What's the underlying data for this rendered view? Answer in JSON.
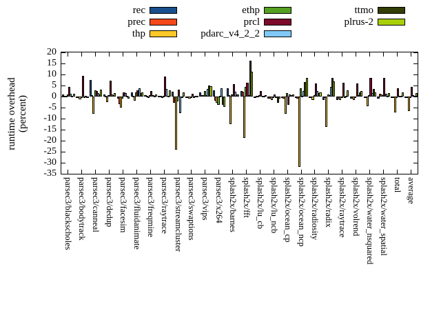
{
  "chart_data": {
    "type": "bar",
    "title": "",
    "ylabel": "runtime overhead (percent)",
    "ylabel_lines": [
      "runtime overhead",
      "(percent)"
    ],
    "ylim": [
      -35,
      20
    ],
    "ytick_step": 5,
    "ytick_labels": [
      "20",
      "15",
      "10",
      "5",
      "0",
      "-5",
      "-10",
      "-15",
      "-20",
      "-25",
      "-30",
      "-35"
    ],
    "grid": false,
    "legend_position": "top",
    "legend_columns": [
      [
        "rec",
        "prec",
        "thp"
      ],
      [
        "ethp",
        "prcl",
        "pdarc_v4_2_2"
      ],
      [
        "ttmo",
        "plrus-2"
      ]
    ],
    "categories": [
      "parsec3/blackscholes",
      "parsec3/bodytrack",
      "parsec3/canneal",
      "parsec3/dedup",
      "parsec3/facesim",
      "parsec3/fluidanimate",
      "parsec3/freqmine",
      "parsec3/raytrace",
      "parsec3/streamcluster",
      "parsec3/swaptions",
      "parsec3/vips",
      "parsec3/x264",
      "splash2x/barnes",
      "splash2x/fft",
      "splash2x/lu_cb",
      "splash2x/lu_ncb",
      "splash2x/ocean_cp",
      "splash2x/ocean_ncp",
      "splash2x/radiosity",
      "splash2x/radix",
      "splash2x/raytrace",
      "splash2x/volrend",
      "splash2x/water_nsquared",
      "splash2x/water_spatial",
      "total",
      "average"
    ],
    "series": [
      {
        "name": "rec",
        "color": "#194f8c",
        "values": [
          0.8,
          -0.3,
          7.5,
          1.0,
          -1.0,
          2.0,
          0.5,
          0.3,
          2.2,
          -0.3,
          2.0,
          2.8,
          3.7,
          2.4,
          -0.3,
          -1.0,
          -0.5,
          -0.5,
          -0.5,
          -1.5,
          -1.5,
          -0.8,
          -0.5,
          -1.0,
          -0.3,
          -0.3
        ]
      },
      {
        "name": "prec",
        "color": "#f4481a",
        "values": [
          0.3,
          -0.5,
          0.5,
          0.3,
          -3.5,
          0.3,
          0.2,
          0.2,
          -2.8,
          -0.5,
          0.5,
          -1.9,
          0.5,
          2.2,
          0.2,
          -0.8,
          -0.8,
          -1.0,
          -0.3,
          -0.5,
          -0.8,
          -0.8,
          -0.6,
          1.1,
          -0.5,
          -0.4
        ]
      },
      {
        "name": "thp",
        "color": "#fcc829",
        "values": [
          0.3,
          -1.2,
          -7.9,
          -2.6,
          -5.0,
          -1.8,
          -0.5,
          -0.4,
          -24.2,
          -0.8,
          0.5,
          -2.8,
          -12.5,
          -18.7,
          0.3,
          -1.5,
          -7.9,
          -32.0,
          -1.5,
          -13.6,
          -1.5,
          -1.5,
          -4.3,
          0.9,
          -7.1,
          -6.5
        ]
      },
      {
        "name": "ethp",
        "color": "#54a021",
        "values": [
          0.8,
          -0.5,
          2.9,
          0.5,
          -1.0,
          2.0,
          0.5,
          0.4,
          -2.3,
          -0.3,
          2.5,
          -3.7,
          1.0,
          4.5,
          0.5,
          -0.5,
          1.5,
          3.9,
          0.5,
          1.0,
          -0.4,
          -0.5,
          0.5,
          0.6,
          -0.4,
          -0.4
        ]
      },
      {
        "name": "prcl",
        "color": "#7c0a2a",
        "values": [
          4.4,
          9.4,
          2.5,
          7.3,
          2.0,
          2.7,
          2.5,
          9.0,
          3.1,
          1.2,
          0.5,
          0.3,
          5.5,
          6.2,
          2.6,
          1.0,
          -3.8,
          0.3,
          6.0,
          0.5,
          6.3,
          6.0,
          8.5,
          8.3,
          3.7,
          4.3
        ]
      },
      {
        "name": "pdarc_v4_2_2",
        "color": "#80c8f8",
        "values": [
          1.3,
          -0.3,
          1.5,
          1.0,
          1.5,
          3.7,
          0.5,
          3.4,
          -7.4,
          -0.3,
          3.4,
          3.9,
          2.2,
          0.5,
          0.3,
          -0.5,
          1.0,
          2.4,
          2.4,
          4.4,
          -0.4,
          0.5,
          1.5,
          1.1,
          0.4,
          0.5
        ]
      },
      {
        "name": "ttmo",
        "color": "#333d08",
        "values": [
          0.3,
          0.3,
          0.8,
          0.5,
          0.3,
          1.5,
          0.3,
          0.2,
          -0.3,
          0.2,
          5.0,
          -3.7,
          1.0,
          16.1,
          0.2,
          -2.8,
          0.5,
          6.7,
          1.5,
          8.5,
          0.3,
          2.0,
          3.5,
          0.3,
          0.2,
          0.2
        ]
      },
      {
        "name": "plrus-2",
        "color": "#a9cf08",
        "values": [
          1.2,
          -0.5,
          3.0,
          1.5,
          -0.8,
          2.0,
          0.8,
          2.8,
          2.0,
          0.4,
          4.7,
          -4.6,
          0.8,
          11.1,
          0.5,
          -1.0,
          1.0,
          8.3,
          2.0,
          7.0,
          2.9,
          2.5,
          1.8,
          1.5,
          1.9,
          1.7
        ]
      }
    ]
  }
}
